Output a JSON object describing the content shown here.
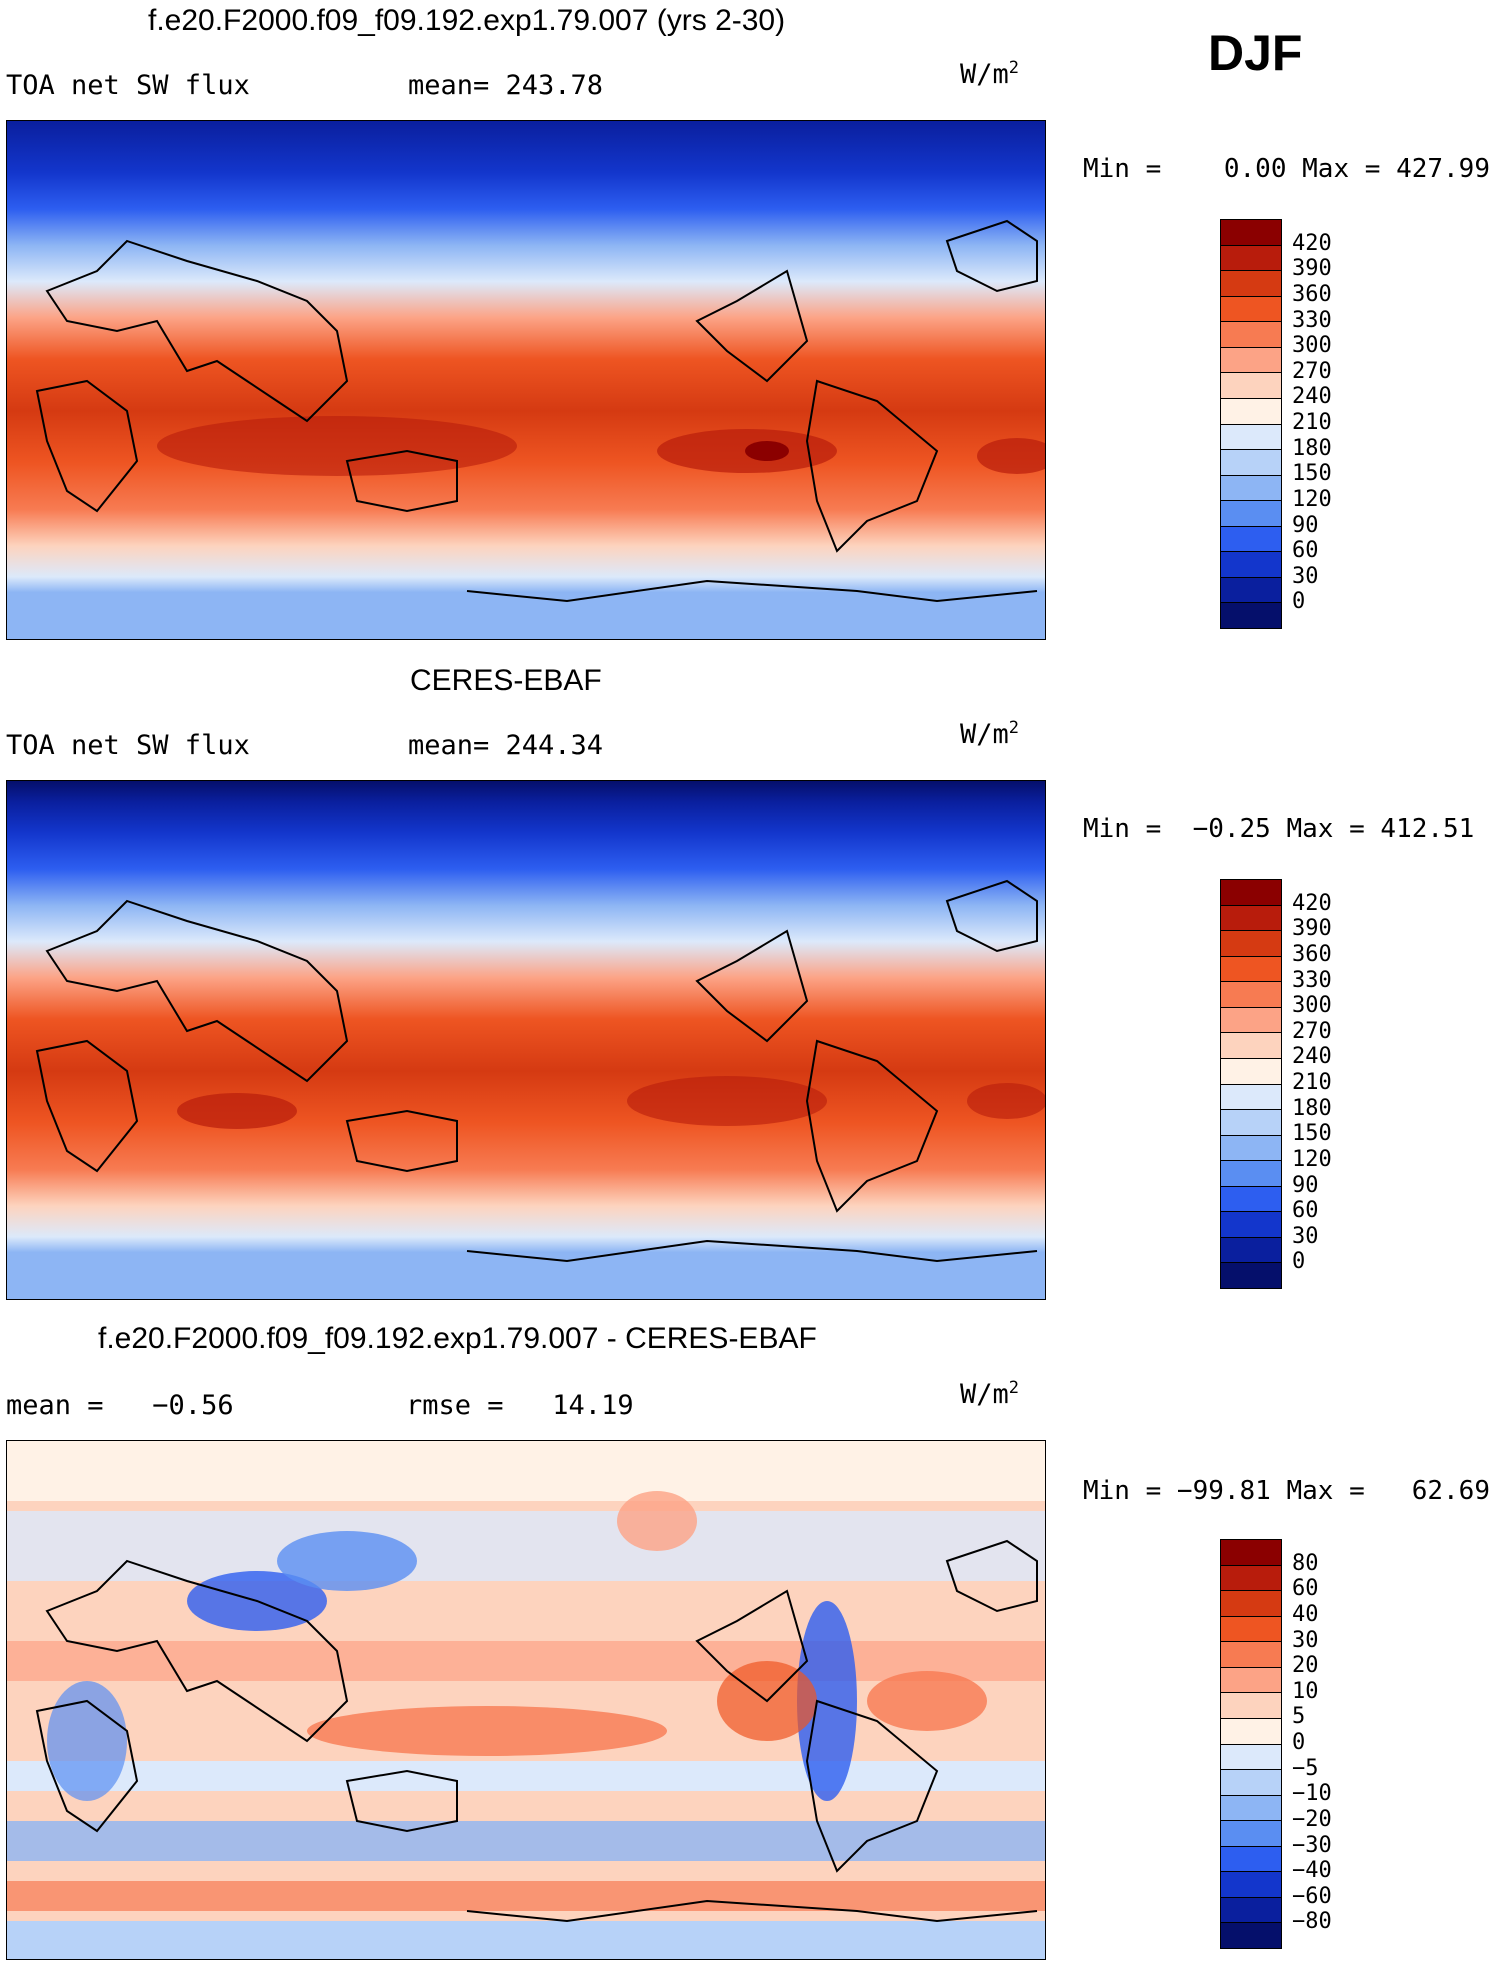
{
  "season": "DJF",
  "units_base": "W/m",
  "units_sup": "2",
  "panels": [
    {
      "title": "f.e20.F2000.f09_f09.192.exp1.79.007 (yrs 2-30)",
      "left_label": "TOA net SW flux",
      "center_label": "mean= 243.78",
      "minmax": "Min =    0.00 Max = 427.99"
    },
    {
      "title": "CERES-EBAF",
      "left_label": "TOA net SW flux",
      "center_label": "mean= 244.34",
      "minmax": "Min =  −0.25 Max = 412.51"
    },
    {
      "title": "f.e20.F2000.f09_f09.192.exp1.79.007 - CERES-EBAF",
      "left_label": "mean =   −0.56",
      "center_label": "rmse =   14.19",
      "minmax": "Min = −99.81 Max =   62.69"
    }
  ],
  "colorbars": [
    {
      "labels": [
        "420",
        "390",
        "360",
        "330",
        "300",
        "270",
        "240",
        "210",
        "180",
        "150",
        "120",
        "90",
        "60",
        "30",
        "0"
      ],
      "colors": [
        "#8b0000",
        "#b81c0c",
        "#d53a12",
        "#ee5522",
        "#f77b52",
        "#fca386",
        "#fdd3be",
        "#fff2e6",
        "#dce9fb",
        "#b7d2f8",
        "#8db5f4",
        "#5a8ef2",
        "#2d5ef0",
        "#1336cc",
        "#0a1f9e",
        "#050f6b"
      ]
    },
    {
      "labels": [
        "420",
        "390",
        "360",
        "330",
        "300",
        "270",
        "240",
        "210",
        "180",
        "150",
        "120",
        "90",
        "60",
        "30",
        "0"
      ],
      "colors": [
        "#8b0000",
        "#b81c0c",
        "#d53a12",
        "#ee5522",
        "#f77b52",
        "#fca386",
        "#fdd3be",
        "#fff2e6",
        "#dce9fb",
        "#b7d2f8",
        "#8db5f4",
        "#5a8ef2",
        "#2d5ef0",
        "#1336cc",
        "#0a1f9e",
        "#050f6b"
      ]
    },
    {
      "labels": [
        "80",
        "60",
        "40",
        "30",
        "20",
        "10",
        "5",
        "0",
        "−5",
        "−10",
        "−20",
        "−30",
        "−40",
        "−60",
        "−80"
      ],
      "colors": [
        "#8b0000",
        "#b81c0c",
        "#d53a12",
        "#ee5522",
        "#f77b52",
        "#fca386",
        "#fdd3be",
        "#fff2e6",
        "#dce9fb",
        "#b7d2f8",
        "#8db5f4",
        "#5a8ef2",
        "#2d5ef0",
        "#1336cc",
        "#0a1f9e",
        "#050f6b"
      ]
    }
  ]
}
